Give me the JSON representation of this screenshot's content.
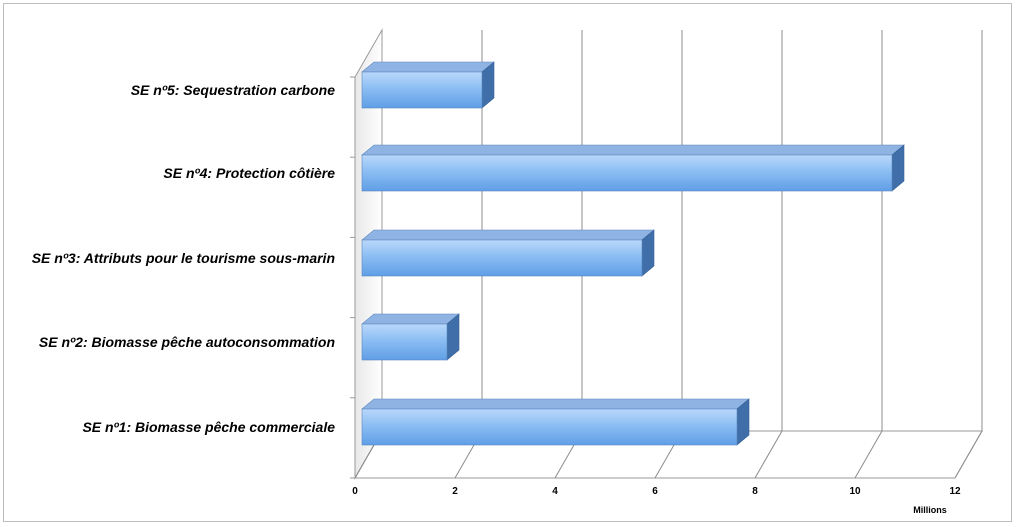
{
  "chart_data": {
    "type": "bar",
    "orientation": "horizontal",
    "style": "3d",
    "categories": [
      "SE nº1: Biomasse pêche commerciale",
      "SE nº2: Biomasse pêche autoconsommation",
      "SE nº3: Attributs pour le tourisme sous-marin",
      "SE nº4: Protection côtière",
      "SE nº5: Sequestration carbone"
    ],
    "values": [
      7.5,
      1.7,
      5.6,
      10.6,
      2.4
    ],
    "x_ticks": [
      "0",
      "2",
      "4",
      "6",
      "8",
      "10",
      "12"
    ],
    "xlim": [
      0,
      12
    ],
    "x_unit_label": "Millions",
    "grid": true,
    "legend": false,
    "bar_color": "#7fb3ec",
    "bar_top_color": "#8fb4e4",
    "bar_side_color": "#3f6ea8"
  }
}
